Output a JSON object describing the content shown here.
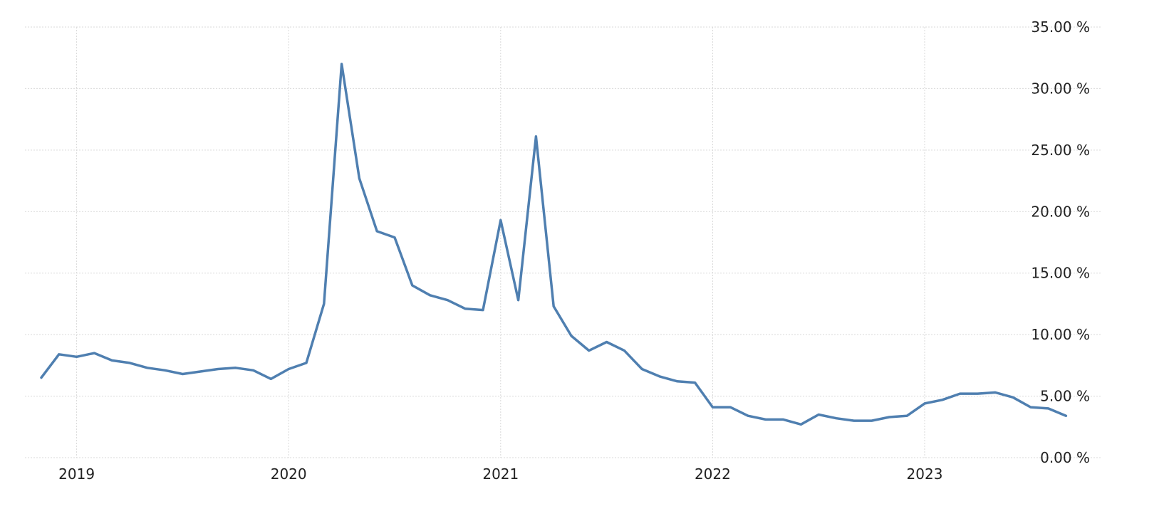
{
  "chart_data": {
    "type": "line",
    "title": "",
    "xlabel": "",
    "ylabel": "",
    "y_axis_position": "right",
    "grid": true,
    "legend": "none",
    "line_color": "#4f7fb0",
    "grid_color": "#d9d9d9",
    "ylim": [
      0,
      35
    ],
    "y_ticks": [
      0,
      5,
      10,
      15,
      20,
      25,
      30,
      35
    ],
    "y_tick_labels": [
      "0.00 %",
      "5.00 %",
      "10.00 %",
      "15.00 %",
      "20.00 %",
      "25.00 %",
      "30.00 %",
      "35.00 %"
    ],
    "x_ticks": [
      "2019-01",
      "2020-01",
      "2021-01",
      "2022-01",
      "2023-01"
    ],
    "x_tick_labels": [
      "2019",
      "2020",
      "2021",
      "2022",
      "2023"
    ],
    "xlim": [
      "2018-10",
      "2023-10"
    ],
    "x": [
      "2018-11",
      "2018-12",
      "2019-01",
      "2019-02",
      "2019-03",
      "2019-04",
      "2019-05",
      "2019-06",
      "2019-07",
      "2019-08",
      "2019-09",
      "2019-10",
      "2019-11",
      "2019-12",
      "2020-01",
      "2020-02",
      "2020-03",
      "2020-04",
      "2020-05",
      "2020-06",
      "2020-07",
      "2020-08",
      "2020-09",
      "2020-10",
      "2020-11",
      "2020-12",
      "2021-01",
      "2021-02",
      "2021-03",
      "2021-04",
      "2021-05",
      "2021-06",
      "2021-07",
      "2021-08",
      "2021-09",
      "2021-10",
      "2021-11",
      "2021-12",
      "2022-01",
      "2022-02",
      "2022-03",
      "2022-04",
      "2022-05",
      "2022-06",
      "2022-07",
      "2022-08",
      "2022-09",
      "2022-10",
      "2022-11",
      "2022-12",
      "2023-01",
      "2023-02",
      "2023-03",
      "2023-04",
      "2023-05",
      "2023-06",
      "2023-07",
      "2023-08",
      "2023-09"
    ],
    "series": [
      {
        "values": [
          6.5,
          8.4,
          8.2,
          8.5,
          7.9,
          7.7,
          7.3,
          7.1,
          6.8,
          7.0,
          7.2,
          7.3,
          7.1,
          6.4,
          7.2,
          7.7,
          12.5,
          32.0,
          22.7,
          18.4,
          17.9,
          14.0,
          13.2,
          12.8,
          12.1,
          12.0,
          19.3,
          12.8,
          26.1,
          12.3,
          9.9,
          8.7,
          9.4,
          8.7,
          7.2,
          6.6,
          6.2,
          6.1,
          4.1,
          4.1,
          3.4,
          3.1,
          3.1,
          2.7,
          3.5,
          3.2,
          3.0,
          3.0,
          3.3,
          3.4,
          4.4,
          4.7,
          5.2,
          5.2,
          5.3,
          4.9,
          4.1,
          4.0,
          3.4
        ]
      }
    ]
  }
}
